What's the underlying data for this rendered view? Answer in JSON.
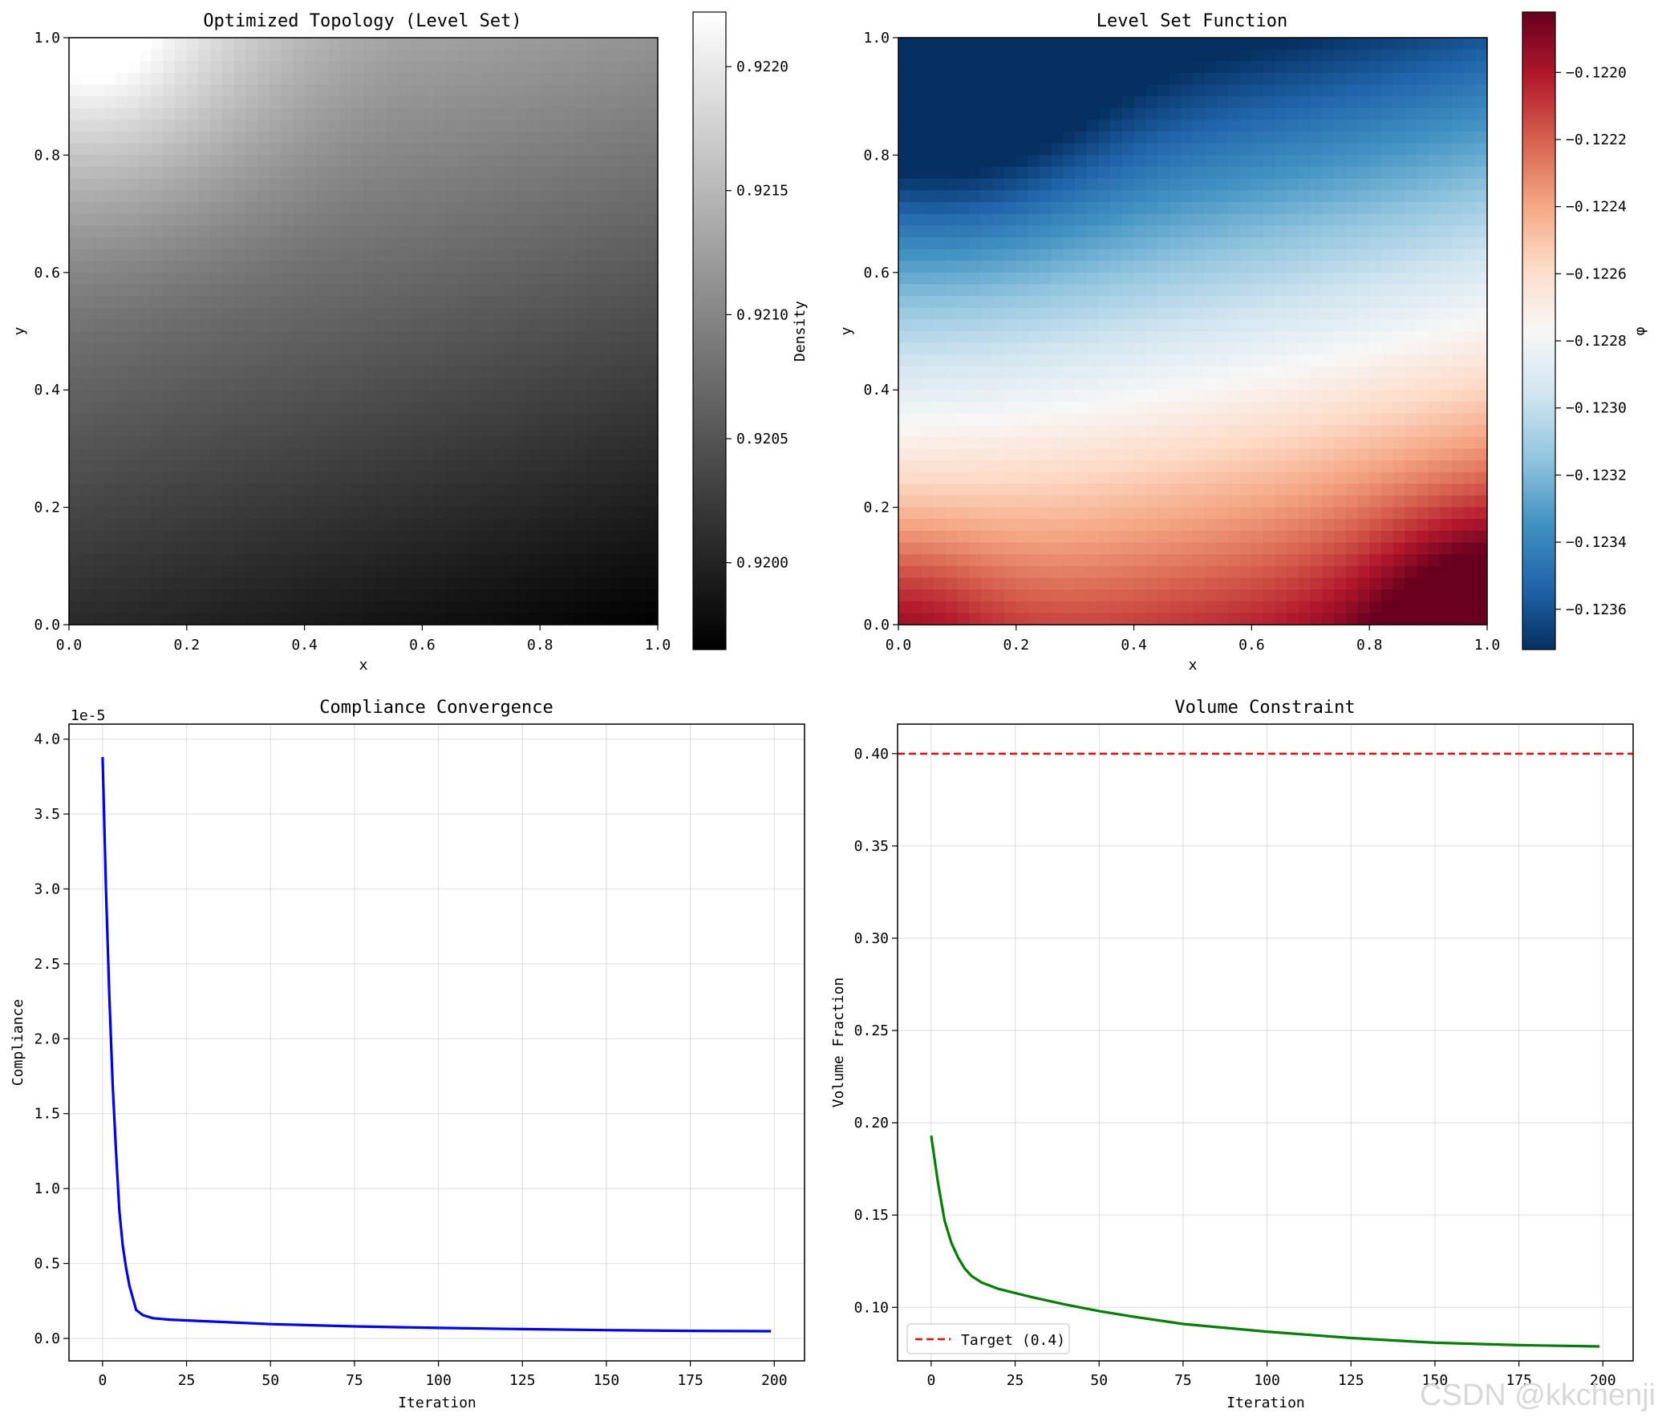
{
  "chart_data": [
    {
      "type": "heatmap",
      "title": "Optimized Topology (Level Set)",
      "xlabel": "x",
      "ylabel": "y",
      "xlim": [
        0,
        1
      ],
      "ylim": [
        0,
        1
      ],
      "x_ticks": [
        "0.0",
        "0.2",
        "0.4",
        "0.6",
        "0.8",
        "1.0"
      ],
      "y_ticks": [
        "0.0",
        "0.2",
        "0.4",
        "0.6",
        "0.8",
        "1.0"
      ],
      "colormap": "gray",
      "colorbar": {
        "label": "Density",
        "range": [
          0.91965,
          0.92222
        ],
        "ticks": [
          "0.9200",
          "0.9205",
          "0.9210",
          "0.9215",
          "0.9220"
        ],
        "tick_values": [
          0.92,
          0.9205,
          0.921,
          0.9215,
          0.922
        ]
      },
      "value_range": [
        0.91965,
        0.92222
      ],
      "max_at": "top-left",
      "min_at": "bottom-right"
    },
    {
      "type": "heatmap",
      "title": "Level Set Function",
      "xlabel": "x",
      "ylabel": "y",
      "xlim": [
        0,
        1
      ],
      "ylim": [
        0,
        1
      ],
      "x_ticks": [
        "0.0",
        "0.2",
        "0.4",
        "0.6",
        "0.8",
        "1.0"
      ],
      "y_ticks": [
        "0.0",
        "0.2",
        "0.4",
        "0.6",
        "0.8",
        "1.0"
      ],
      "colormap": "RdBu_r",
      "colorbar": {
        "label": "φ",
        "range": [
          -0.12372,
          -0.12182
        ],
        "ticks": [
          "−0.1236",
          "−0.1234",
          "−0.1232",
          "−0.1230",
          "−0.1228",
          "−0.1226",
          "−0.1224",
          "−0.1222",
          "−0.1220"
        ],
        "tick_values": [
          -0.1236,
          -0.1234,
          -0.1232,
          -0.123,
          -0.1228,
          -0.1226,
          -0.1224,
          -0.1222,
          -0.122
        ]
      },
      "value_range": [
        -0.12372,
        -0.12182
      ],
      "min_at": "top-left",
      "max_at": "bottom-right"
    },
    {
      "type": "line",
      "title": "Compliance Convergence",
      "xlabel": "Iteration",
      "ylabel": "Compliance",
      "offset_text": "1e-5",
      "xlim": [
        -10,
        209
      ],
      "ylim": [
        -0.15,
        4.1
      ],
      "x_ticks": [
        "0",
        "25",
        "50",
        "75",
        "100",
        "125",
        "150",
        "175",
        "200"
      ],
      "x_tick_values": [
        0,
        25,
        50,
        75,
        100,
        125,
        150,
        175,
        200
      ],
      "y_ticks": [
        "0.0",
        "0.5",
        "1.0",
        "1.5",
        "2.0",
        "2.5",
        "3.0",
        "3.5",
        "4.0"
      ],
      "y_tick_values": [
        0,
        0.5,
        1,
        1.5,
        2,
        2.5,
        3,
        3.5,
        4
      ],
      "grid": true,
      "series": [
        {
          "name": "Compliance",
          "color": "#0000ff",
          "x": [
            0,
            1,
            2,
            3,
            4,
            5,
            6,
            7,
            8,
            9,
            10,
            12,
            15,
            20,
            30,
            50,
            75,
            100,
            125,
            150,
            175,
            199
          ],
          "y": [
            3.88,
            3.0,
            2.3,
            1.7,
            1.25,
            0.85,
            0.62,
            0.47,
            0.35,
            0.27,
            0.19,
            0.155,
            0.135,
            0.125,
            0.115,
            0.095,
            0.08,
            0.07,
            0.062,
            0.055,
            0.05,
            0.048
          ]
        }
      ]
    },
    {
      "type": "line",
      "title": "Volume Constraint",
      "xlabel": "Iteration",
      "ylabel": "Volume Fraction",
      "xlim": [
        -10,
        209
      ],
      "ylim": [
        0.071,
        0.416
      ],
      "x_ticks": [
        "0",
        "25",
        "50",
        "75",
        "100",
        "125",
        "150",
        "175",
        "200"
      ],
      "x_tick_values": [
        0,
        25,
        50,
        75,
        100,
        125,
        150,
        175,
        200
      ],
      "y_ticks": [
        "0.10",
        "0.15",
        "0.20",
        "0.25",
        "0.30",
        "0.35",
        "0.40"
      ],
      "y_tick_values": [
        0.1,
        0.15,
        0.2,
        0.25,
        0.3,
        0.35,
        0.4
      ],
      "grid": true,
      "legend_position": "lower-left",
      "series": [
        {
          "name": "Volume Fraction",
          "color": "#008000",
          "x": [
            0,
            2,
            4,
            6,
            8,
            10,
            12,
            15,
            20,
            30,
            40,
            50,
            60,
            75,
            100,
            125,
            150,
            175,
            199
          ],
          "y": [
            0.193,
            0.168,
            0.147,
            0.135,
            0.127,
            0.121,
            0.117,
            0.1135,
            0.11,
            0.1055,
            0.1015,
            0.098,
            0.095,
            0.091,
            0.0868,
            0.0834,
            0.0808,
            0.0795,
            0.0788
          ]
        },
        {
          "name": "Target (0.4)",
          "color": "#ff0000",
          "style": "dashed",
          "y_const": 0.4
        }
      ]
    }
  ],
  "watermark": "CSDN @kkchenji"
}
